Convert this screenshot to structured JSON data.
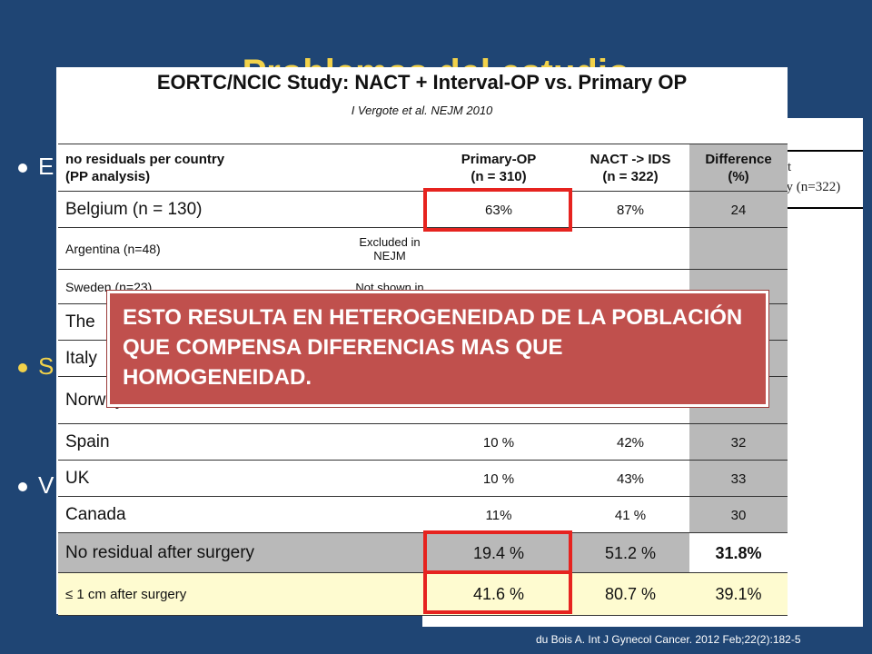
{
  "slide": {
    "title": "Problemas del estudio",
    "bullet_fragments": [
      "E",
      "S",
      "V"
    ]
  },
  "back_table": {
    "col_header_line1": "t",
    "col_header_line2": "py (n=322)"
  },
  "figure": {
    "title": "EORTC/NCIC Study: NACT + Interval-OP vs. Primary OP",
    "subtitle": "I Vergote et al. NEJM 2010",
    "header": {
      "col0": "no residuals per country\n(PP analysis)",
      "col1": "Primary-OP\n(n = 310)",
      "col2": "NACT -> IDS\n(n = 322)",
      "col3": "Difference\n(%)"
    },
    "rows": [
      {
        "label": "Belgium (n = 130)",
        "note": "",
        "primary": "63%",
        "nact": "87%",
        "diff": "24"
      },
      {
        "label": "Argentina (n=48)",
        "note": "Excluded in\nNEJM",
        "primary": "",
        "nact": "",
        "diff": ""
      },
      {
        "label": "Sweden (n=23)",
        "note": "Not shown in",
        "primary": "",
        "nact": "",
        "diff": ""
      },
      {
        "label": "The",
        "note": "",
        "primary": "",
        "nact": "",
        "diff": ""
      },
      {
        "label": "Italy",
        "note": "",
        "primary": "",
        "nact": "",
        "diff": ""
      },
      {
        "label": "Norway",
        "note": "",
        "primary": "",
        "nact": "",
        "diff": ""
      },
      {
        "label": "Spain",
        "note": "",
        "primary": "10 %",
        "nact": "42%",
        "diff": "32"
      },
      {
        "label": "UK",
        "note": "",
        "primary": "10 %",
        "nact": "43%",
        "diff": "33"
      },
      {
        "label": "Canada",
        "note": "",
        "primary": "11%",
        "nact": "41 %",
        "diff": "30"
      }
    ],
    "summary": [
      {
        "label": "No residual after surgery",
        "primary": "19.4 %",
        "nact": "51.2 %",
        "diff": "31.8%"
      },
      {
        "label": "≤ 1 cm after surgery",
        "primary": "41.6 %",
        "nact": "80.7 %",
        "diff": "39.1%"
      }
    ]
  },
  "callout": {
    "text": "ESTO RESULTA EN HETEROGENEIDAD DE LA POBLACIÓN QUE COMPENSA DIFERENCIAS MAS QUE HOMOGENEIDAD."
  },
  "citation": "du Bois A. Int J Gynecol Cancer. 2012 Feb;22(2):182-5",
  "colors": {
    "background": "#1f4574",
    "title": "#f2d24a",
    "highlight_box": "#e6231f",
    "callout": "#c0504d",
    "difference_column": "#b9b9b9",
    "summary_row": "#fefbd0"
  }
}
